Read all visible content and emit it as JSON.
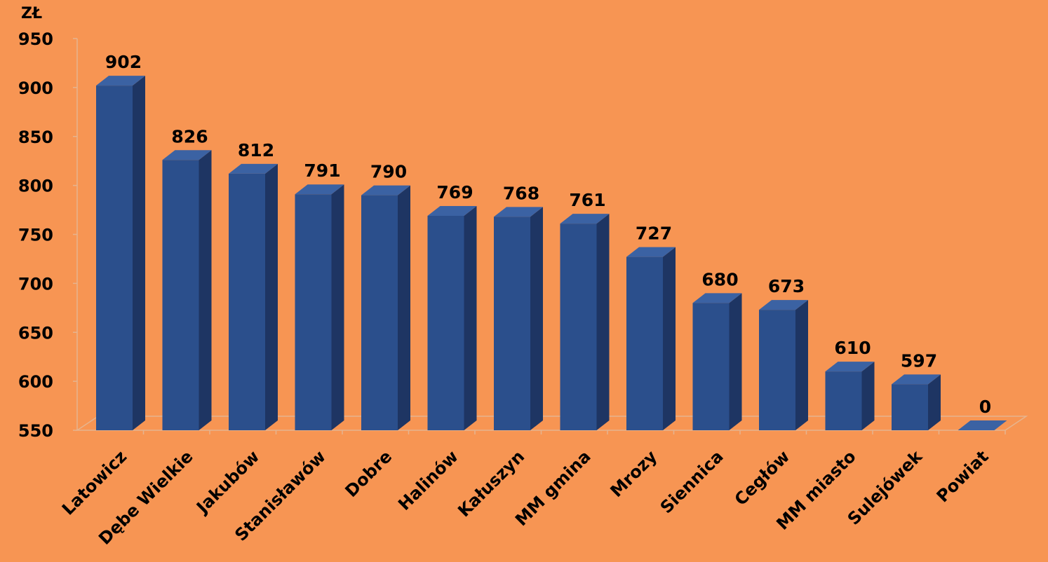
{
  "chart_data": {
    "type": "bar3d",
    "unit_label": "ZŁ",
    "categories": [
      "Latowicz",
      "Dębe Wielkie",
      "Jakubów",
      "Stanisławów",
      "Dobre",
      "Halinów",
      "Kałuszyn",
      "MM gmina",
      "Mrozy",
      "Siennica",
      "Cegłów",
      "MM miasto",
      "Sulejówek",
      "Powiat"
    ],
    "values": [
      902,
      826,
      812,
      791,
      790,
      769,
      768,
      761,
      727,
      680,
      673,
      610,
      597,
      0
    ],
    "color": "#2b4f8c",
    "ylim": [
      550,
      950
    ],
    "yticks": [
      550,
      600,
      650,
      700,
      750,
      800,
      850,
      900,
      950
    ]
  }
}
